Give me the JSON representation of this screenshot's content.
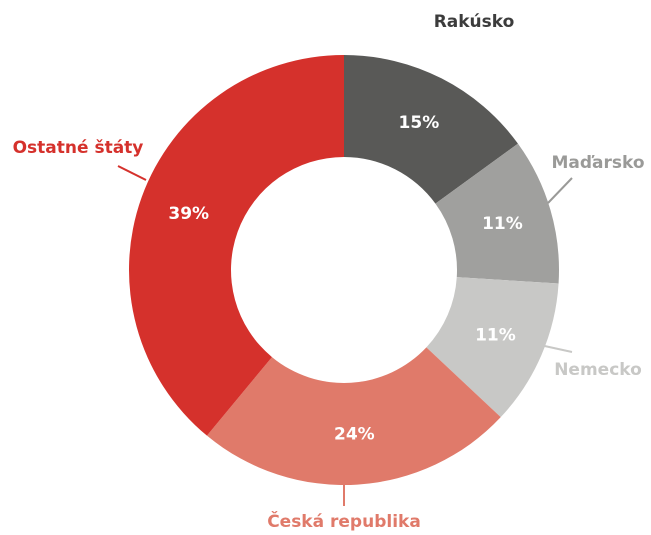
{
  "chart_data": {
    "type": "donut",
    "categories": [
      "Rakúsko",
      "Maďarsko",
      "Nemecko",
      "Česká republika",
      "Ostatné štáty"
    ],
    "values": [
      15,
      11,
      11,
      24,
      39
    ],
    "value_labels": [
      "15%",
      "11%",
      "11%",
      "24%",
      "39%"
    ],
    "colors": [
      "#595957",
      "#a0a09e",
      "#c8c8c6",
      "#e07a6a",
      "#d5312c"
    ],
    "label_colors": [
      "#3c3c3c",
      "#9a9a98",
      "#c8c8c6",
      "#e07a6a",
      "#d5312c"
    ]
  }
}
